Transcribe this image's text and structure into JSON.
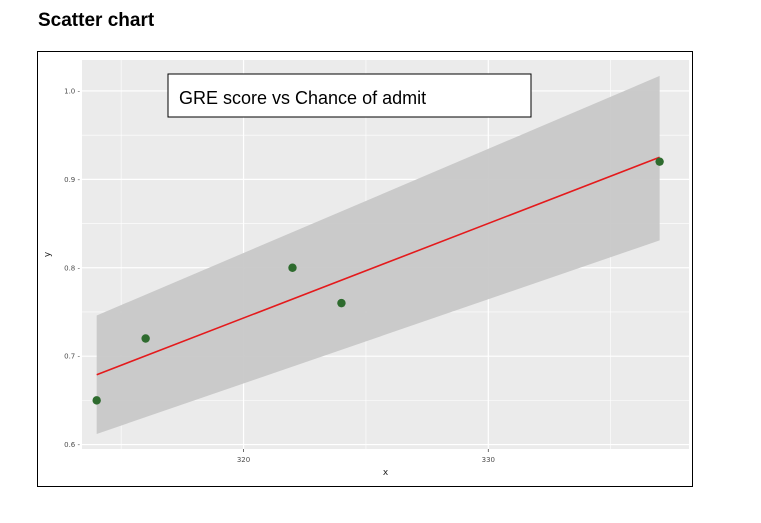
{
  "page": {
    "heading": "Scatter chart"
  },
  "chart_data": {
    "type": "scatter",
    "title": "GRE score vs Chance of admit",
    "xlabel": "x",
    "ylabel": "y",
    "xlim": [
      313.4,
      338.2
    ],
    "ylim": [
      0.595,
      1.035
    ],
    "x_ticks": [
      320,
      330
    ],
    "y_ticks": [
      0.6,
      0.7,
      0.8,
      0.9,
      1.0
    ],
    "y_tick_labels": [
      "0.6 -",
      "0.7 -",
      "0.8 -",
      "0.9 -",
      "1.0 -"
    ],
    "grid": true,
    "points": {
      "x": [
        314,
        316,
        322,
        324,
        337
      ],
      "y": [
        0.65,
        0.72,
        0.8,
        0.76,
        0.92
      ]
    },
    "fit_line": {
      "x": [
        314,
        337
      ],
      "y": [
        0.679,
        0.925
      ]
    },
    "confidence_band": {
      "x": [
        314,
        337
      ],
      "upper": [
        0.746,
        1.017
      ],
      "lower": [
        0.612,
        0.831
      ]
    },
    "colors": {
      "panel": "#ebebeb",
      "grid": "#ffffff",
      "point": "#2e6b2e",
      "fit_line": "#e41a1c",
      "band": "#c8c8c8"
    }
  }
}
